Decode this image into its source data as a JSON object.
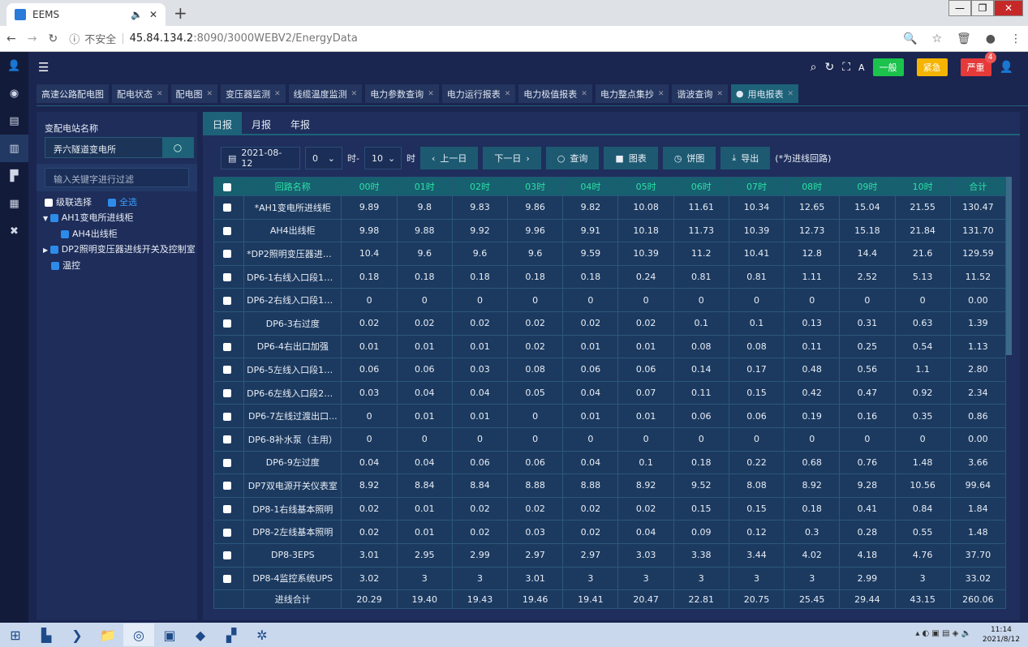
{
  "browser": {
    "tab_title": "EEMS",
    "new_tab": "+",
    "insecure": "不安全",
    "host": "45.84.134.2",
    "path": ":8090/3000WEBV2/EnergyData"
  },
  "header": {
    "levels": [
      {
        "label": "一般",
        "color": "#1bc24c"
      },
      {
        "label": "紧急",
        "color": "#f5b400"
      },
      {
        "label": "严重",
        "color": "#e53a3a",
        "badge": "4"
      }
    ]
  },
  "page_tabs": [
    "高速公路配电图",
    "配电状态",
    "配电图",
    "变压器监测",
    "线缆温度监测",
    "电力参数查询",
    "电力运行报表",
    "电力极值报表",
    "电力整点集抄",
    "谐波查询",
    "用电报表"
  ],
  "left": {
    "station_label": "变配电站名称",
    "station_value": "弄六隧道变电所",
    "filter_placeholder": "输入关键字进行过滤",
    "cascade": "级联选择",
    "select_all": "全选",
    "tree": [
      "AH1变电所进线柜",
      "AH4出线柜",
      "DP2照明变压器进线开关及控制室",
      "温控"
    ]
  },
  "main": {
    "tabs": [
      "日报",
      "月报",
      "年报"
    ],
    "date": "2021-08-12",
    "hour_from": "0",
    "hour_sep": "时-",
    "hour_to": "10",
    "hour_suffix": "时",
    "prev": "上一日",
    "next": "下一日",
    "query": "查询",
    "chart": "图表",
    "pie": "饼图",
    "export": "导出",
    "note": "(*为进线回路)"
  },
  "table": {
    "headers": [
      "回路名称",
      "00时",
      "01时",
      "02时",
      "03时",
      "04时",
      "05时",
      "06时",
      "07时",
      "08时",
      "09时",
      "10时",
      "合计"
    ],
    "rows": [
      [
        "*AH1变电所进线柜",
        "9.89",
        "9.8",
        "9.83",
        "9.86",
        "9.82",
        "10.08",
        "11.61",
        "10.34",
        "12.65",
        "15.04",
        "21.55",
        "130.47"
      ],
      [
        "AH4出线柜",
        "9.98",
        "9.88",
        "9.92",
        "9.96",
        "9.91",
        "10.18",
        "11.73",
        "10.39",
        "12.73",
        "15.18",
        "21.84",
        "131.70"
      ],
      [
        "*DP2照明变压器进线...",
        "10.4",
        "9.6",
        "9.6",
        "9.6",
        "9.59",
        "10.39",
        "11.2",
        "10.41",
        "12.8",
        "14.4",
        "21.6",
        "129.59"
      ],
      [
        "DP6-1右线入口段1加...",
        "0.18",
        "0.18",
        "0.18",
        "0.18",
        "0.18",
        "0.24",
        "0.81",
        "0.81",
        "1.11",
        "2.52",
        "5.13",
        "11.52"
      ],
      [
        "DP6-2右线入口段1加...",
        "0",
        "0",
        "0",
        "0",
        "0",
        "0",
        "0",
        "0",
        "0",
        "0",
        "0",
        "0.00"
      ],
      [
        "DP6-3右过度",
        "0.02",
        "0.02",
        "0.02",
        "0.02",
        "0.02",
        "0.02",
        "0.1",
        "0.1",
        "0.13",
        "0.31",
        "0.63",
        "1.39"
      ],
      [
        "DP6-4右出口加强",
        "0.01",
        "0.01",
        "0.01",
        "0.02",
        "0.01",
        "0.01",
        "0.08",
        "0.08",
        "0.11",
        "0.25",
        "0.54",
        "1.13"
      ],
      [
        "DP6-5左线入口段1加...",
        "0.06",
        "0.06",
        "0.03",
        "0.08",
        "0.06",
        "0.06",
        "0.14",
        "0.17",
        "0.48",
        "0.56",
        "1.1",
        "2.80"
      ],
      [
        "DP6-6左线入口段2加...",
        "0.03",
        "0.04",
        "0.04",
        "0.05",
        "0.04",
        "0.07",
        "0.11",
        "0.15",
        "0.42",
        "0.47",
        "0.92",
        "2.34"
      ],
      [
        "DP6-7左线过渡出口...",
        "0",
        "0.01",
        "0.01",
        "0",
        "0.01",
        "0.01",
        "0.06",
        "0.06",
        "0.19",
        "0.16",
        "0.35",
        "0.86"
      ],
      [
        "DP6-8补水泵（主用）",
        "0",
        "0",
        "0",
        "0",
        "0",
        "0",
        "0",
        "0",
        "0",
        "0",
        "0",
        "0.00"
      ],
      [
        "DP6-9左过度",
        "0.04",
        "0.04",
        "0.06",
        "0.06",
        "0.04",
        "0.1",
        "0.18",
        "0.22",
        "0.68",
        "0.76",
        "1.48",
        "3.66"
      ],
      [
        "DP7双电源开关仪表室",
        "8.92",
        "8.84",
        "8.84",
        "8.88",
        "8.88",
        "8.92",
        "9.52",
        "8.08",
        "8.92",
        "9.28",
        "10.56",
        "99.64"
      ],
      [
        "DP8-1右线基本照明",
        "0.02",
        "0.01",
        "0.02",
        "0.02",
        "0.02",
        "0.02",
        "0.15",
        "0.15",
        "0.18",
        "0.41",
        "0.84",
        "1.84"
      ],
      [
        "DP8-2左线基本照明",
        "0.02",
        "0.01",
        "0.02",
        "0.03",
        "0.02",
        "0.04",
        "0.09",
        "0.12",
        "0.3",
        "0.28",
        "0.55",
        "1.48"
      ],
      [
        "DP8-3EPS",
        "3.01",
        "2.95",
        "2.99",
        "2.97",
        "2.97",
        "3.03",
        "3.38",
        "3.44",
        "4.02",
        "4.18",
        "4.76",
        "37.70"
      ],
      [
        "DP8-4监控系统UPS",
        "3.02",
        "3",
        "3",
        "3.01",
        "3",
        "3",
        "3",
        "3",
        "3",
        "2.99",
        "3",
        "33.02"
      ]
    ],
    "total": [
      "进线合计",
      "20.29",
      "19.40",
      "19.43",
      "19.46",
      "19.41",
      "20.47",
      "22.81",
      "20.75",
      "25.45",
      "29.44",
      "43.15",
      "260.06"
    ]
  },
  "taskbar": {
    "time": "11:14",
    "date": "2021/8/12"
  }
}
